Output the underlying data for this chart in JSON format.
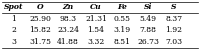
{
  "columns": [
    "Spot",
    "O",
    "Zn",
    "Cu",
    "Fe",
    "Si",
    "S"
  ],
  "rows": [
    [
      "1",
      "25.90",
      "98.3",
      "21.31",
      "0.55",
      "5.49",
      "8.37"
    ],
    [
      "2",
      "15.82",
      "23.24",
      "1.54",
      "3.19",
      "7.88",
      "1.92"
    ],
    [
      "3",
      "31.75",
      "41.88",
      "3.32",
      "8.51",
      "26.73",
      "7.03"
    ]
  ],
  "bg_color": "#ffffff",
  "header_line_color": "#000000",
  "text_color": "#000000",
  "font_size": 5.5
}
